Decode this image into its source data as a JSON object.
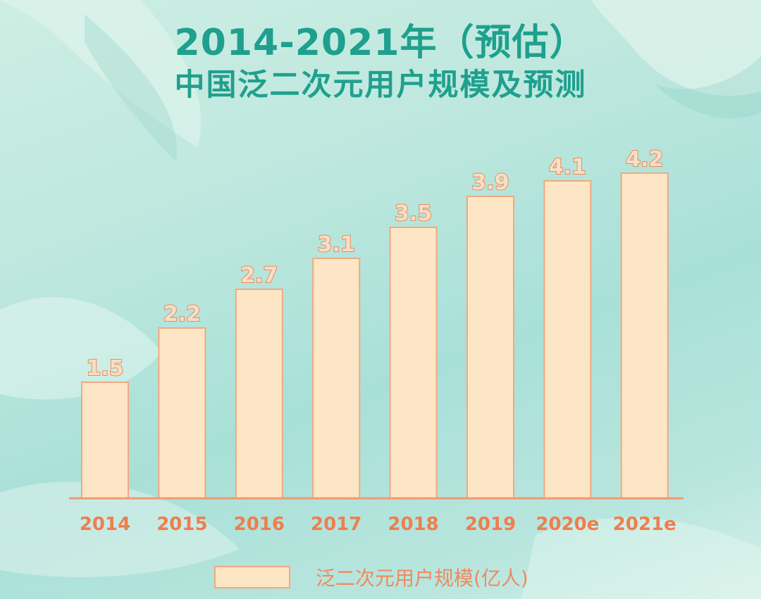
{
  "title_line1": "2014-2021年（预估）",
  "title_line2": "中国泛二次元用户规模及预测",
  "colors": {
    "title": "#1fa08e",
    "bar_fill": "#fde6c6",
    "bar_stroke": "#f2a880",
    "label": "#ef7e4d",
    "axis": "#ee9a72"
  },
  "chart_data": {
    "type": "bar",
    "title": "2014-2021年（预估） 中国泛二次元用户规模及预测",
    "categories": [
      "2014",
      "2015",
      "2016",
      "2017",
      "2018",
      "2019",
      "2020e",
      "2021e"
    ],
    "series": [
      {
        "name": "泛二次元用户规模(亿人)",
        "values": [
          1.5,
          2.2,
          2.7,
          3.1,
          3.5,
          3.9,
          4.1,
          4.2
        ]
      }
    ],
    "value_labels": [
      "1.5",
      "2.2",
      "2.7",
      "3.1",
      "3.5",
      "3.9",
      "4.1",
      "4.2"
    ],
    "ylim": [
      0,
      4.8
    ],
    "grid": false,
    "legend_position": "bottom-center"
  }
}
